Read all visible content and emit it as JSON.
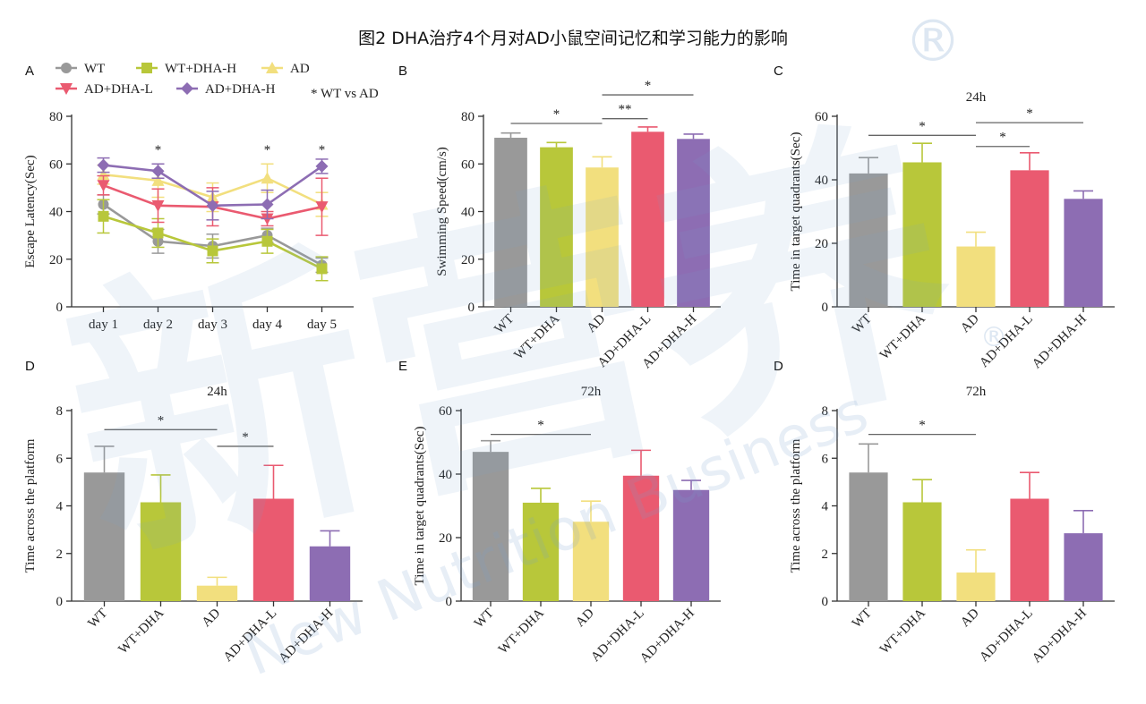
{
  "figure_title": "图2 DHA治疗4个月对AD小鼠空间记忆和学习能力的影响",
  "watermark": {
    "text": "新营养",
    "subtitle": "New Nutrition Business",
    "mark": "®"
  },
  "colors": {
    "WT": "#999999",
    "WT+DHA": "#b8c73a",
    "AD": "#f2df7e",
    "AD+DHA-L": "#ea5a70",
    "AD+DHA-H": "#8d6db3",
    "axis": "#333333",
    "watermark": "#a6c2df"
  },
  "chart_data": [
    {
      "id": "A",
      "panel": "A",
      "type": "line",
      "title": "",
      "xlabel": "",
      "ylabel": "Escape Latency(Sec)",
      "categories": [
        "day 1",
        "day 2",
        "day 3",
        "day 4",
        "day 5"
      ],
      "ylim": [
        0,
        80
      ],
      "yticks": [
        0,
        20,
        40,
        60,
        80
      ],
      "series": [
        {
          "name": "WT",
          "color": "#999999",
          "marker": "circle",
          "values": [
            43,
            27.5,
            25.5,
            30,
            17.5
          ],
          "errors": [
            4,
            5,
            5,
            3,
            3
          ]
        },
        {
          "name": "WT+DHA-H",
          "color": "#b8c73a",
          "marker": "square",
          "values": [
            38,
            31,
            23.5,
            27.5,
            16
          ],
          "errors": [
            7,
            6,
            5,
            5,
            5
          ]
        },
        {
          "name": "AD",
          "color": "#f2df7e",
          "marker": "triangle-up",
          "values": [
            55.5,
            53,
            46,
            54,
            43
          ],
          "errors": [
            4,
            7,
            6,
            6,
            5
          ]
        },
        {
          "name": "AD+DHA-L",
          "color": "#ea5a70",
          "marker": "triangle-down",
          "values": [
            51,
            42.5,
            42,
            37,
            42
          ],
          "errors": [
            4,
            7,
            8,
            3,
            12
          ]
        },
        {
          "name": "AD+DHA-H",
          "color": "#8d6db3",
          "marker": "diamond",
          "values": [
            59.5,
            57,
            42.5,
            43,
            59
          ],
          "errors": [
            3,
            3,
            6,
            6,
            3
          ]
        }
      ],
      "legend_note": "* WT vs AD",
      "stars": [
        {
          "index": 1,
          "label": "*"
        },
        {
          "index": 3,
          "label": "*"
        },
        {
          "index": 4,
          "label": "*"
        }
      ]
    },
    {
      "id": "B",
      "panel": "B",
      "type": "bar",
      "title": "",
      "xlabel": "",
      "ylabel": "Swimming Speed(cm/s)",
      "categories": [
        "WT",
        "WT+DHA",
        "AD",
        "AD+DHA-L",
        "AD+DHA-H"
      ],
      "values": [
        71,
        67,
        58.5,
        73.5,
        70.5
      ],
      "errors": [
        2,
        2,
        4.5,
        2,
        2
      ],
      "ylim": [
        0,
        80
      ],
      "yticks": [
        0,
        20,
        40,
        60,
        80
      ],
      "colors": [
        "#999999",
        "#b8c73a",
        "#f2df7e",
        "#ea5a70",
        "#8d6db3"
      ],
      "significance": [
        {
          "from": 0,
          "to": 2,
          "y": 77,
          "label": "*"
        },
        {
          "from": 2,
          "to": 3,
          "y": 79,
          "label": "**"
        },
        {
          "from": 2,
          "to": 4,
          "y": 89,
          "label": "*"
        }
      ]
    },
    {
      "id": "C",
      "panel": "C",
      "type": "bar",
      "title": "24h",
      "xlabel": "",
      "ylabel": "Time in target quadrants(Sec)",
      "categories": [
        "WT",
        "WT+DHA",
        "AD",
        "AD+DHA-L",
        "AD+DHA-H"
      ],
      "values": [
        42,
        45.5,
        19,
        43,
        34
      ],
      "errors": [
        5,
        6,
        4.5,
        5.5,
        2.5
      ],
      "ylim": [
        0,
        60
      ],
      "yticks": [
        0,
        20,
        40,
        60
      ],
      "colors": [
        "#999999",
        "#b8c73a",
        "#f2df7e",
        "#ea5a70",
        "#8d6db3"
      ],
      "significance": [
        {
          "from": 0,
          "to": 2,
          "y": 54,
          "label": "*"
        },
        {
          "from": 2,
          "to": 3,
          "y": 50.5,
          "label": "*"
        },
        {
          "from": 2,
          "to": 4,
          "y": 58,
          "label": "*"
        }
      ]
    },
    {
      "id": "D1",
      "panel": "D",
      "type": "bar",
      "title": "24h",
      "xlabel": "",
      "ylabel": "Time across the platform",
      "categories": [
        "WT",
        "WT+DHA",
        "AD",
        "AD+DHA-L",
        "AD+DHA-H"
      ],
      "values": [
        5.4,
        4.15,
        0.65,
        4.3,
        2.3
      ],
      "errors": [
        1.1,
        1.15,
        0.35,
        1.4,
        0.65
      ],
      "ylim": [
        0,
        8
      ],
      "yticks": [
        0,
        2,
        4,
        6,
        8
      ],
      "colors": [
        "#999999",
        "#b8c73a",
        "#f2df7e",
        "#ea5a70",
        "#8d6db3"
      ],
      "significance": [
        {
          "from": 0,
          "to": 2,
          "y": 7.2,
          "label": "*"
        },
        {
          "from": 2,
          "to": 3,
          "y": 6.5,
          "label": "*"
        }
      ]
    },
    {
      "id": "E",
      "panel": "E",
      "type": "bar",
      "title": "72h",
      "xlabel": "",
      "ylabel": "Time in target quadrants(Sec)",
      "categories": [
        "WT",
        "WT+DHA",
        "AD",
        "AD+DHA-L",
        "AD+DHA-H"
      ],
      "values": [
        47,
        31,
        25,
        39.5,
        35
      ],
      "errors": [
        3.5,
        4.5,
        6.5,
        8,
        3
      ],
      "ylim": [
        0,
        60
      ],
      "yticks": [
        0,
        20,
        40,
        60
      ],
      "colors": [
        "#999999",
        "#b8c73a",
        "#f2df7e",
        "#ea5a70",
        "#8d6db3"
      ],
      "significance": [
        {
          "from": 0,
          "to": 2,
          "y": 52.5,
          "label": "*"
        }
      ]
    },
    {
      "id": "D2",
      "panel": "D",
      "type": "bar",
      "title": "72h",
      "xlabel": "",
      "ylabel": "Time across the platform",
      "categories": [
        "WT",
        "WT+DHA",
        "AD",
        "AD+DHA-L",
        "AD+DHA-H"
      ],
      "values": [
        5.4,
        4.15,
        1.2,
        4.3,
        2.85
      ],
      "errors": [
        1.2,
        0.95,
        0.95,
        1.1,
        0.95
      ],
      "ylim": [
        0,
        8
      ],
      "yticks": [
        0,
        2,
        4,
        6,
        8
      ],
      "colors": [
        "#999999",
        "#b8c73a",
        "#f2df7e",
        "#ea5a70",
        "#8d6db3"
      ],
      "significance": [
        {
          "from": 0,
          "to": 2,
          "y": 7.0,
          "label": "*"
        }
      ]
    }
  ]
}
